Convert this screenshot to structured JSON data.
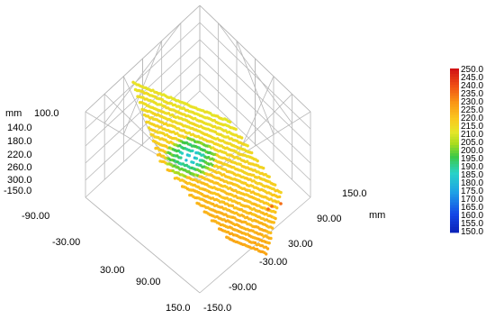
{
  "chart_data": {
    "type": "scatter",
    "title": "",
    "projection": "3d-isometric-bottom-up",
    "x_axis": {
      "label": "mm",
      "range": [
        -150,
        150
      ],
      "ticks": [
        "150.0",
        "90.00",
        "30.00",
        "-30.00",
        "-90.00",
        "-150.0"
      ]
    },
    "y_axis": {
      "label": "",
      "range": [
        -150,
        150
      ],
      "ticks": [
        "-90.00",
        "-30.00",
        "30.00",
        "90.00",
        "150.0"
      ]
    },
    "z_axis": {
      "label": "mm",
      "range": [
        100,
        300
      ],
      "ticks": [
        "100.0",
        "140.0",
        "180.0",
        "220.0",
        "260.0",
        "300.0",
        "-150.0"
      ]
    },
    "grid": true,
    "colorbar": {
      "position": "right",
      "range": [
        150,
        250
      ],
      "labels": [
        "250.0",
        "245.0",
        "240.0",
        "235.0",
        "230.0",
        "225.0",
        "220.0",
        "215.0",
        "210.0",
        "205.0",
        "200.0",
        "195.0",
        "190.0",
        "185.0",
        "180.0",
        "175.0",
        "170.0",
        "165.0",
        "160.0",
        "155.0",
        "150.0"
      ]
    },
    "point_cloud": {
      "description_values": "horizontal scan lines of points, z mostly ~210-225 mm, with a central blue/green cluster ~165-200 mm",
      "scan_line_count": 22,
      "base_value": 213,
      "low_cluster_value": 180
    },
    "colors": {
      "grid": "#b8b8b8",
      "axis": "#000000"
    }
  }
}
